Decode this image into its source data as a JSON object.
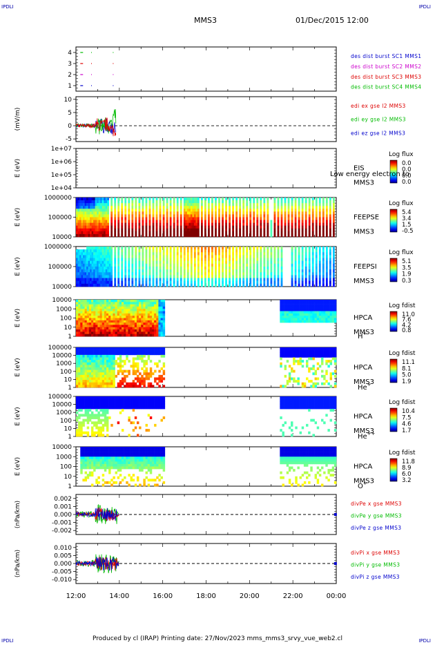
{
  "corner_tl": "IPDLI",
  "corner_tr": "IPDLI",
  "corner_bl": "IPDLI",
  "corner_br": "IPDLI",
  "title": "MMS3",
  "date": "01/Dec/2015 12:00",
  "footer": "Produced by cl (IRAP)   Printing date: 27/Nov/2023   mms_mms3_srvy_vue_web2.cl",
  "colors": {
    "red": "#dd0000",
    "green": "#00bb00",
    "blue": "#0000cc",
    "magenta": "#cc00cc"
  },
  "chart_data": [
    {
      "type": "scatter",
      "panel": "burst",
      "ylim": [
        0.5,
        4.5
      ],
      "yticks": [
        "1",
        "2",
        "3",
        "4"
      ],
      "legend": [
        {
          "label": "des dist burst SC1 MMS1",
          "color": "#0000cc"
        },
        {
          "label": "des dist burst SC2 MMS2",
          "color": "#cc00cc"
        },
        {
          "label": "des dist burst SC3 MMS3",
          "color": "#dd0000"
        },
        {
          "label": "des dist burst SC4 MMS4",
          "color": "#00bb00"
        }
      ],
      "series": [
        {
          "y": 4,
          "color": "#00bb00",
          "x": [
            0.2,
            0.7,
            1.7
          ]
        },
        {
          "y": 3,
          "color": "#dd0000",
          "x": [
            0.2,
            0.7,
            1.7
          ]
        },
        {
          "y": 2,
          "color": "#cc00cc",
          "x": [
            0.2,
            0.7,
            1.7
          ]
        },
        {
          "y": 1,
          "color": "#0000cc",
          "x": [
            0.2,
            0.7,
            1.7
          ]
        }
      ]
    },
    {
      "type": "line",
      "panel": "edi",
      "ylabel": "(mV/m)",
      "ylim": [
        -6,
        11
      ],
      "yticks": [
        "10",
        "5",
        "0",
        "-5"
      ],
      "legend": [
        {
          "label": "edi ex gse l2 MMS3",
          "color": "#dd0000"
        },
        {
          "label": "edi ey gse l2 MMS3",
          "color": "#00bb00"
        },
        {
          "label": "edi ez gse l2 MMS3",
          "color": "#0000cc"
        }
      ]
    },
    {
      "type": "heatmap",
      "panel": "eis",
      "ylabel": "E (eV)",
      "yticks": [
        "1e+07",
        "1e+06",
        "1e+05",
        "1e+04"
      ],
      "label1": "EIS",
      "label2": "MMS3",
      "overlay": "Low energy electron to",
      "cb_title": "Log flux",
      "cb_ticks": [
        "0.0",
        "0.0",
        "0.0",
        "0.0"
      ]
    },
    {
      "type": "heatmap",
      "panel": "feepse",
      "ylabel": "E (eV)",
      "yticks": [
        "1000000",
        "100000",
        "10000"
      ],
      "label1": "FEEPSE",
      "label2": "MMS3",
      "cb_title": "Log flux",
      "cb_ticks": [
        "5.4",
        "3.4",
        "1.5",
        "-0.5"
      ]
    },
    {
      "type": "heatmap",
      "panel": "feepsi",
      "ylabel": "E (eV)",
      "yticks": [
        "1000000",
        "100000",
        "10000"
      ],
      "label1": "FEEPSI",
      "label2": "MMS3",
      "cb_title": "Log flux",
      "cb_ticks": [
        "5.1",
        "3.5",
        "1.9",
        "0.3"
      ]
    },
    {
      "type": "heatmap",
      "panel": "hpca_h",
      "ylabel": "E (eV)",
      "yticks": [
        "10000",
        "1000",
        "100",
        "10",
        "1"
      ],
      "label1": "HPCA",
      "label2": "MMS3",
      "species": "H",
      "charge": "+",
      "cb_title": "Log fdist",
      "cb_ticks": [
        "11.0",
        "7.6",
        "4.2",
        "0.8"
      ]
    },
    {
      "type": "heatmap",
      "panel": "hpca_he",
      "ylabel": "E (eV)",
      "yticks": [
        "100000",
        "10000",
        "1000",
        "100",
        "10",
        "1"
      ],
      "label1": "HPCA",
      "label2": "MMS3",
      "species": "He",
      "charge": "+",
      "cb_title": "Log fdist",
      "cb_ticks": [
        "11.1",
        "8.1",
        "5.0",
        "1.9"
      ]
    },
    {
      "type": "heatmap",
      "panel": "hpca_he2",
      "ylabel": "E (eV)",
      "yticks": [
        "100000",
        "10000",
        "1000",
        "100",
        "10",
        "1"
      ],
      "label1": "HPCA",
      "label2": "MMS3",
      "species": "He",
      "charge": "++",
      "cb_title": "Log fdist",
      "cb_ticks": [
        "10.4",
        "7.5",
        "4.6",
        "1.7"
      ]
    },
    {
      "type": "heatmap",
      "panel": "hpca_o",
      "ylabel": "E (eV)",
      "yticks": [
        "10000",
        "1000",
        "100",
        "10",
        "1"
      ],
      "label1": "HPCA",
      "label2": "MMS3",
      "species": "O",
      "charge": "+",
      "cb_title": "Log fdist",
      "cb_ticks": [
        "11.8",
        "8.9",
        "6.0",
        "3.2"
      ]
    },
    {
      "type": "line",
      "panel": "divpe",
      "ylabel": "(nPa/km)",
      "ylim": [
        -0.0025,
        0.0025
      ],
      "yticks": [
        "0.002",
        "0.001",
        "0.000",
        "-0.001",
        "-0.002"
      ],
      "legend": [
        {
          "label": "divPe x gse MMS3",
          "color": "#dd0000"
        },
        {
          "label": "divPe y gse MMS3",
          "color": "#00bb00"
        },
        {
          "label": "divPe z gse MMS3",
          "color": "#0000cc"
        }
      ]
    },
    {
      "type": "line",
      "panel": "divpi",
      "ylabel": "(nPa/km)",
      "ylim": [
        -0.012,
        0.012
      ],
      "yticks": [
        "0.010",
        "0.005",
        "0.000",
        "-0.005",
        "-0.010"
      ],
      "legend": [
        {
          "label": "divPi x gse MMS3",
          "color": "#dd0000"
        },
        {
          "label": "divPi y gse MMS3",
          "color": "#00bb00"
        },
        {
          "label": "divPi z gse MMS3",
          "color": "#0000cc"
        }
      ]
    }
  ],
  "xaxis": {
    "ticks": [
      "12:00",
      "14:00",
      "16:00",
      "18:00",
      "20:00",
      "22:00",
      "00:00"
    ],
    "range_hours": [
      0,
      12
    ]
  }
}
